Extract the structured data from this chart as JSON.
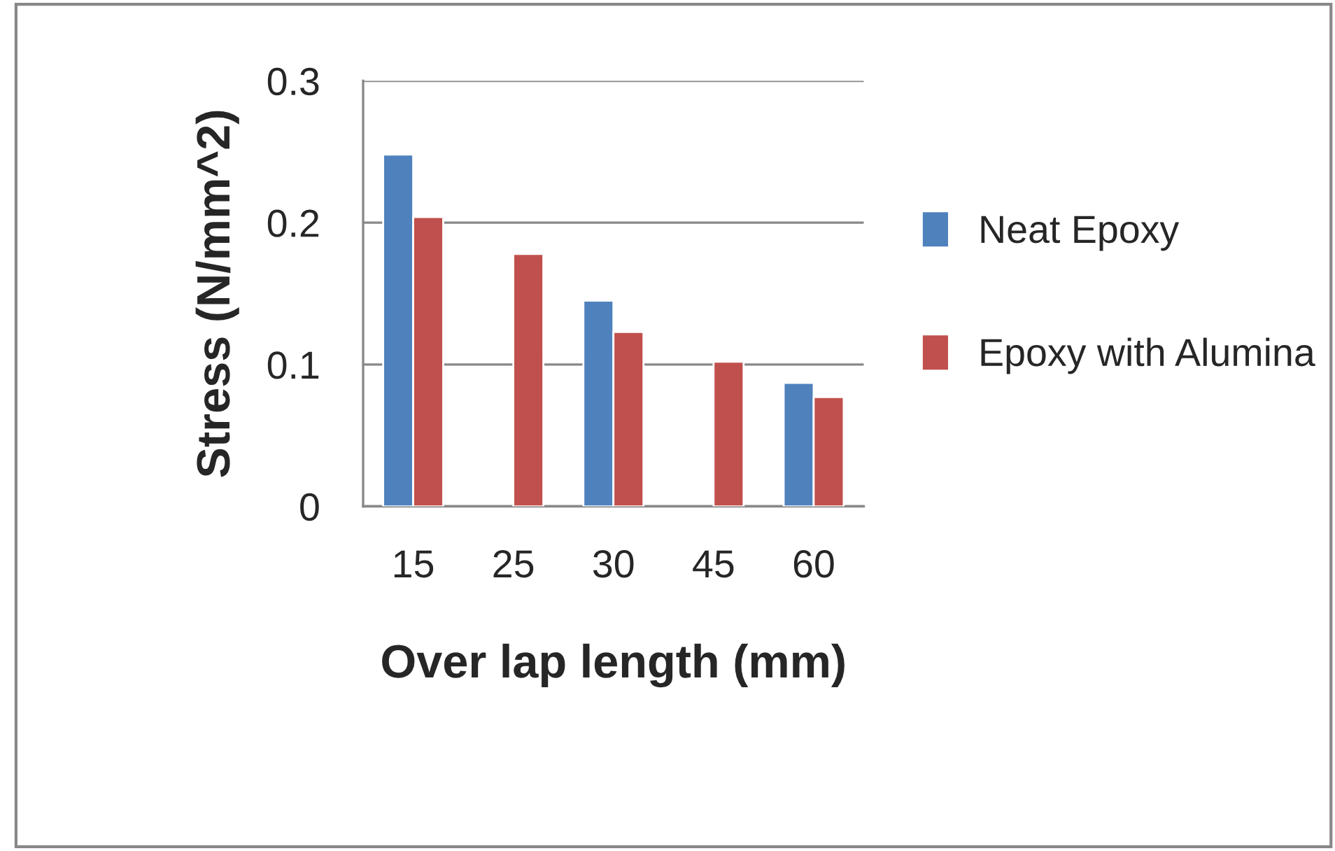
{
  "chart_data": {
    "type": "bar",
    "xlabel": "Over lap length (mm)",
    "ylabel": "Stress (N/mm^2)",
    "categories": [
      "15",
      "25",
      "30",
      "45",
      "60"
    ],
    "series": [
      {
        "name": "Neat Epoxy",
        "color": "#4f81bd",
        "values": [
          0.248,
          null,
          0.145,
          null,
          0.087
        ]
      },
      {
        "name": "Epoxy with Alumina",
        "color": "#c0504d",
        "values": [
          0.204,
          0.178,
          0.123,
          0.102,
          0.077
        ]
      }
    ],
    "ylim": [
      0,
      0.3
    ],
    "yticks": [
      {
        "value": 0,
        "label": "0"
      },
      0.1,
      0.2,
      0.3
    ],
    "grid": "y",
    "legend": "right"
  }
}
